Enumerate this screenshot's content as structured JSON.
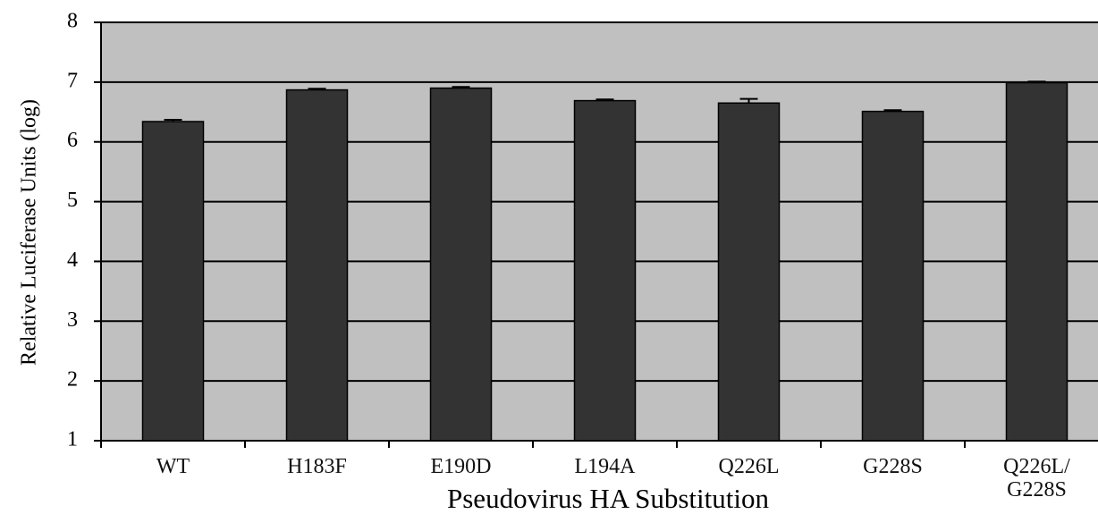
{
  "chart_data": {
    "type": "bar",
    "xlabel": "Pseudovirus HA Substitution",
    "ylabel": "Relative Luciferase Units (log)",
    "categories": [
      "WT",
      "H183F",
      "E190D",
      "L194A",
      "Q226L",
      "G228S",
      "Q226L/\nG228S"
    ],
    "values": [
      6.34,
      6.87,
      6.9,
      6.69,
      6.65,
      6.51,
      6.99
    ],
    "errors": [
      0.03,
      0.02,
      0.02,
      0.02,
      0.07,
      0.02,
      0.02
    ],
    "color": "#333333",
    "ylim": [
      1,
      8
    ],
    "yticks": [
      1,
      2,
      3,
      4,
      5,
      6,
      7,
      8
    ],
    "grid": true
  }
}
